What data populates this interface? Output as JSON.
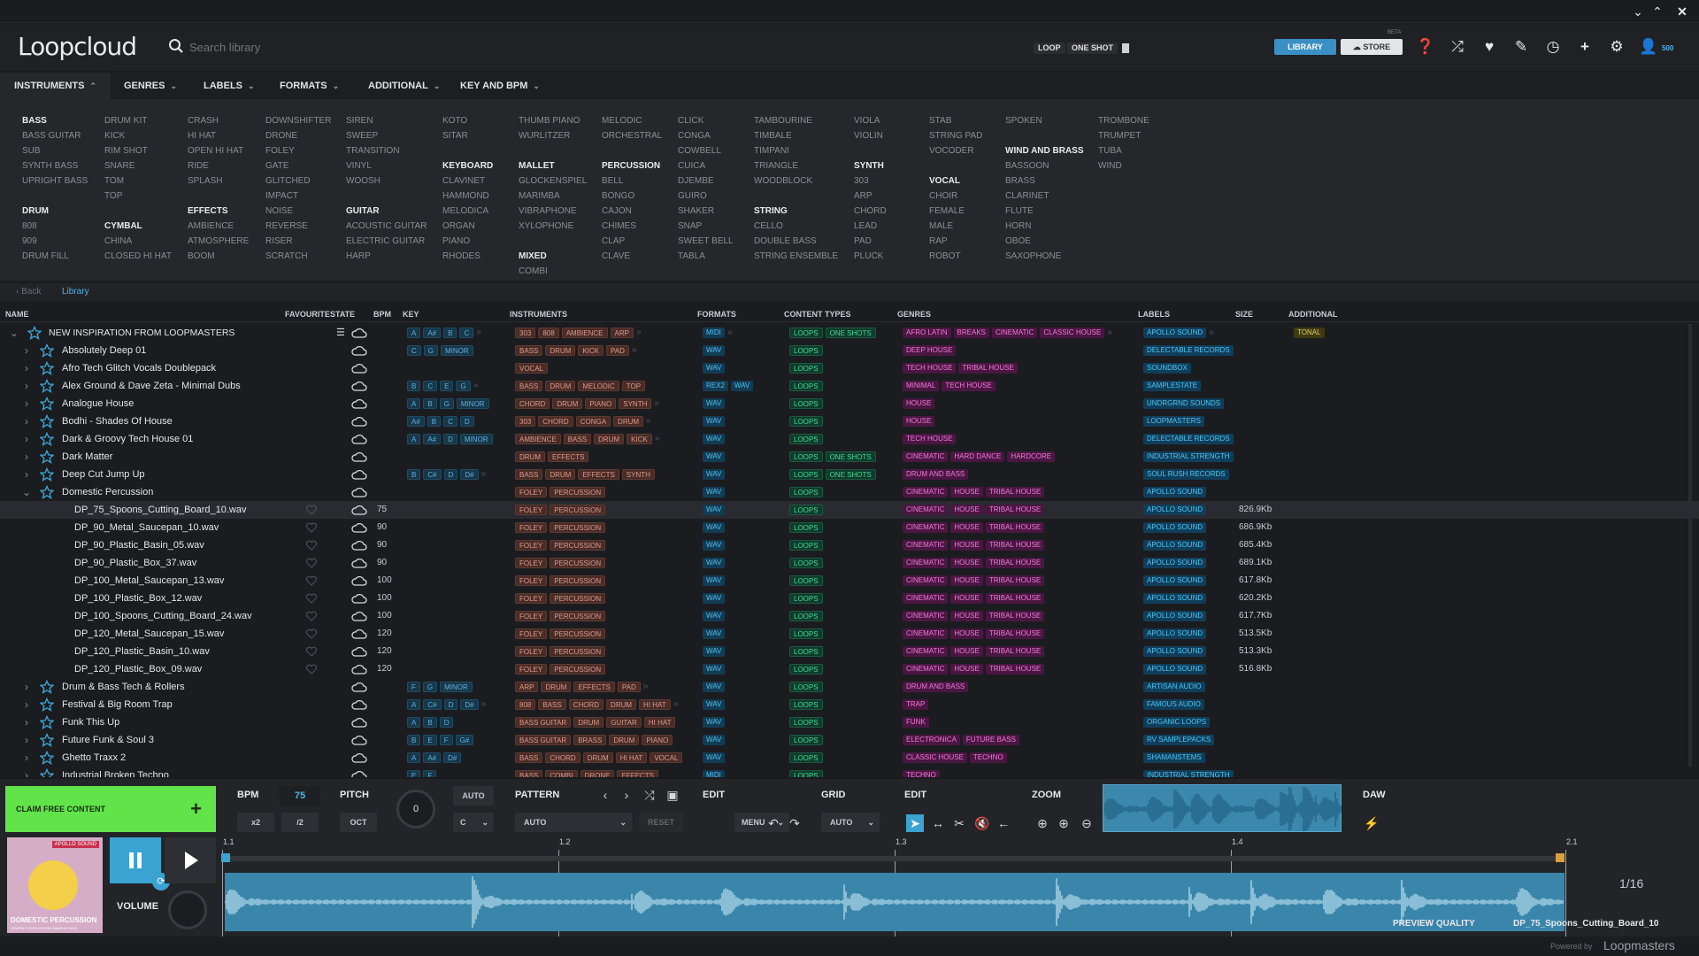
{
  "window": {
    "min": "⌄",
    "restore": "⌃",
    "close": "✕"
  },
  "app": {
    "logo": "Loopcloud"
  },
  "search": {
    "placeholder": "Search library",
    "value": ""
  },
  "toggles": {
    "loop": "LOOP",
    "one_shot": "ONE SHOT"
  },
  "header_buttons": {
    "library": "LIBRARY",
    "store": "STORE",
    "beta": "BETA",
    "points": "500"
  },
  "category_tabs": [
    {
      "label": "INSTRUMENTS",
      "chev": "⌃"
    },
    {
      "label": "GENRES",
      "chev": "⌄"
    },
    {
      "label": "LABELS",
      "chev": "⌄"
    },
    {
      "label": "FORMATS",
      "chev": "⌄"
    },
    {
      "label": "ADDITIONAL",
      "chev": "⌄"
    },
    {
      "label": "KEY AND BPM",
      "chev": "⌄"
    }
  ],
  "instrument_columns": [
    [
      {
        "t": "BASS",
        "h": true
      },
      {
        "t": "BASS GUITAR"
      },
      {
        "t": "SUB"
      },
      {
        "t": "SYNTH BASS"
      },
      {
        "t": "UPRIGHT BASS"
      },
      {
        "t": ""
      },
      {
        "t": "DRUM",
        "h": true
      },
      {
        "t": "808"
      },
      {
        "t": "909"
      },
      {
        "t": "DRUM FILL"
      }
    ],
    [
      {
        "t": "DRUM KIT"
      },
      {
        "t": "KICK"
      },
      {
        "t": "RIM SHOT"
      },
      {
        "t": "SNARE"
      },
      {
        "t": "TOM"
      },
      {
        "t": "TOP"
      },
      {
        "t": ""
      },
      {
        "t": "CYMBAL",
        "h": true
      },
      {
        "t": "CHINA"
      },
      {
        "t": "CLOSED HI HAT"
      }
    ],
    [
      {
        "t": "CRASH"
      },
      {
        "t": "HI HAT"
      },
      {
        "t": "OPEN HI HAT"
      },
      {
        "t": "RIDE"
      },
      {
        "t": "SPLASH"
      },
      {
        "t": ""
      },
      {
        "t": "EFFECTS",
        "h": true
      },
      {
        "t": "AMBIENCE"
      },
      {
        "t": "ATMOSPHERE"
      },
      {
        "t": "BOOM"
      }
    ],
    [
      {
        "t": "DOWNSHIFTER"
      },
      {
        "t": "DRONE"
      },
      {
        "t": "FOLEY"
      },
      {
        "t": "GATE"
      },
      {
        "t": "GLITCHED"
      },
      {
        "t": "IMPACT"
      },
      {
        "t": "NOISE"
      },
      {
        "t": "REVERSE"
      },
      {
        "t": "RISER"
      },
      {
        "t": "SCRATCH"
      }
    ],
    [
      {
        "t": "SIREN"
      },
      {
        "t": "SWEEP"
      },
      {
        "t": "TRANSITION"
      },
      {
        "t": "VINYL"
      },
      {
        "t": "WOOSH"
      },
      {
        "t": ""
      },
      {
        "t": "GUITAR",
        "h": true
      },
      {
        "t": "ACOUSTIC GUITAR"
      },
      {
        "t": "ELECTRIC GUITAR"
      },
      {
        "t": "HARP"
      }
    ],
    [
      {
        "t": "KOTO"
      },
      {
        "t": "SITAR"
      },
      {
        "t": ""
      },
      {
        "t": "KEYBOARD",
        "h": true
      },
      {
        "t": "CLAVINET"
      },
      {
        "t": "HAMMOND"
      },
      {
        "t": "MELODICA"
      },
      {
        "t": "ORGAN"
      },
      {
        "t": "PIANO"
      },
      {
        "t": "RHODES"
      }
    ],
    [
      {
        "t": "THUMB PIANO"
      },
      {
        "t": "WURLITZER"
      },
      {
        "t": ""
      },
      {
        "t": "MALLET",
        "h": true
      },
      {
        "t": "GLOCKENSPIEL"
      },
      {
        "t": "MARIMBA"
      },
      {
        "t": "VIBRAPHONE"
      },
      {
        "t": "XYLOPHONE"
      },
      {
        "t": ""
      },
      {
        "t": "MIXED",
        "h": true
      },
      {
        "t": "COMBI"
      }
    ],
    [
      {
        "t": "MELODIC"
      },
      {
        "t": "ORCHESTRAL"
      },
      {
        "t": ""
      },
      {
        "t": "PERCUSSION",
        "h": true
      },
      {
        "t": "BELL"
      },
      {
        "t": "BONGO"
      },
      {
        "t": "CAJON"
      },
      {
        "t": "CHIMES"
      },
      {
        "t": "CLAP"
      },
      {
        "t": "CLAVE"
      }
    ],
    [
      {
        "t": "CLICK"
      },
      {
        "t": "CONGA"
      },
      {
        "t": "COWBELL"
      },
      {
        "t": "CUICA"
      },
      {
        "t": "DJEMBE"
      },
      {
        "t": "GUIRO"
      },
      {
        "t": "SHAKER"
      },
      {
        "t": "SNAP"
      },
      {
        "t": "SWEET BELL"
      },
      {
        "t": "TABLA"
      }
    ],
    [
      {
        "t": "TAMBOURINE"
      },
      {
        "t": "TIMBALE"
      },
      {
        "t": "TIMPANI"
      },
      {
        "t": "TRIANGLE"
      },
      {
        "t": "WOODBLOCK"
      },
      {
        "t": ""
      },
      {
        "t": "STRING",
        "h": true
      },
      {
        "t": "CELLO"
      },
      {
        "t": "DOUBLE BASS"
      },
      {
        "t": "STRING ENSEMBLE"
      }
    ],
    [
      {
        "t": "VIOLA"
      },
      {
        "t": "VIOLIN"
      },
      {
        "t": ""
      },
      {
        "t": "SYNTH",
        "h": true
      },
      {
        "t": "303"
      },
      {
        "t": "ARP"
      },
      {
        "t": "CHORD"
      },
      {
        "t": "LEAD"
      },
      {
        "t": "PAD"
      },
      {
        "t": "PLUCK"
      }
    ],
    [
      {
        "t": "STAB"
      },
      {
        "t": "STRING PAD"
      },
      {
        "t": "VOCODER"
      },
      {
        "t": ""
      },
      {
        "t": "VOCAL",
        "h": true
      },
      {
        "t": "CHOIR"
      },
      {
        "t": "FEMALE"
      },
      {
        "t": "MALE"
      },
      {
        "t": "RAP"
      },
      {
        "t": "ROBOT"
      }
    ],
    [
      {
        "t": "SPOKEN"
      },
      {
        "t": ""
      },
      {
        "t": "WIND AND BRASS",
        "h": true
      },
      {
        "t": "BASSOON"
      },
      {
        "t": "BRASS"
      },
      {
        "t": "CLARINET"
      },
      {
        "t": "FLUTE"
      },
      {
        "t": "HORN"
      },
      {
        "t": "OBOE"
      },
      {
        "t": "SAXOPHONE"
      }
    ],
    [
      {
        "t": "TROMBONE"
      },
      {
        "t": "TRUMPET"
      },
      {
        "t": "TUBA"
      },
      {
        "t": "WIND"
      }
    ]
  ],
  "breadcrumb": {
    "back": "Back",
    "current": "Library"
  },
  "columns": {
    "name": "NAME",
    "favourite": "FAVOURITE",
    "state": "STATE",
    "bpm": "BPM",
    "key": "KEY",
    "instruments": "INSTRUMENTS",
    "formats": "FORMATS",
    "content_types": "CONTENT TYPES",
    "genres": "GENRES",
    "labels": "LABELS",
    "size": "SIZE",
    "additional": "ADDITIONAL"
  },
  "rows": [
    {
      "name": "NEW INSPIRATION FROM LOOPMASTERS",
      "level": 0,
      "exp": "open",
      "star": true,
      "stack": true,
      "bpm": "",
      "key": [
        "A",
        "A#",
        "B",
        "C"
      ],
      "km": true,
      "inst": [
        "303",
        "808",
        "AMBIENCE",
        "ARP"
      ],
      "im": true,
      "fmt": [
        "MIDI"
      ],
      "fm": true,
      "ct": [
        "LOOPS",
        "ONE SHOTS"
      ],
      "gen": [
        "AFRO LATIN",
        "BREAKS",
        "CINEMATIC",
        "CLASSIC HOUSE"
      ],
      "gm": true,
      "lab": [
        "APOLLO SOUND"
      ],
      "lm": true,
      "size": "",
      "add": [
        "TONAL"
      ]
    },
    {
      "name": "Absolutely Deep 01",
      "level": 1,
      "exp": "closed",
      "star": true,
      "bpm": "",
      "key": [
        "C",
        "G",
        "MINOR"
      ],
      "inst": [
        "BASS",
        "DRUM",
        "KICK",
        "PAD"
      ],
      "im": true,
      "fmt": [
        "WAV"
      ],
      "ct": [
        "LOOPS"
      ],
      "gen": [
        "DEEP HOUSE"
      ],
      "lab": [
        "DELECTABLE RECORDS"
      ],
      "size": ""
    },
    {
      "name": "Afro Tech Glitch Vocals Doublepack",
      "level": 1,
      "exp": "closed",
      "star": true,
      "bpm": "",
      "key": [],
      "inst": [
        "VOCAL"
      ],
      "fmt": [
        "WAV"
      ],
      "ct": [
        "LOOPS"
      ],
      "gen": [
        "TECH HOUSE",
        "TRIBAL HOUSE"
      ],
      "lab": [
        "SOUNDBOX"
      ],
      "size": ""
    },
    {
      "name": "Alex Ground & Dave Zeta - Minimal Dubs",
      "level": 1,
      "exp": "closed",
      "star": true,
      "bpm": "",
      "key": [
        "B",
        "C",
        "E",
        "G"
      ],
      "km": true,
      "inst": [
        "BASS",
        "DRUM",
        "MELODIC",
        "TOP"
      ],
      "fmt": [
        "REX2",
        "WAV"
      ],
      "ct": [
        "LOOPS"
      ],
      "gen": [
        "MINIMAL",
        "TECH HOUSE"
      ],
      "lab": [
        "SAMPLESTATE"
      ],
      "size": ""
    },
    {
      "name": "Analogue House",
      "level": 1,
      "exp": "closed",
      "star": true,
      "bpm": "",
      "key": [
        "A",
        "B",
        "G",
        "MINOR"
      ],
      "inst": [
        "CHORD",
        "DRUM",
        "PIANO",
        "SYNTH"
      ],
      "im": true,
      "fmt": [
        "WAV"
      ],
      "ct": [
        "LOOPS"
      ],
      "gen": [
        "HOUSE"
      ],
      "lab": [
        "UNDRGRND SOUNDS"
      ],
      "size": ""
    },
    {
      "name": "Bodhi - Shades Of House",
      "level": 1,
      "exp": "closed",
      "star": true,
      "bpm": "",
      "key": [
        "A#",
        "B",
        "C",
        "D"
      ],
      "inst": [
        "303",
        "CHORD",
        "CONGA",
        "DRUM"
      ],
      "im": true,
      "fmt": [
        "WAV"
      ],
      "ct": [
        "LOOPS"
      ],
      "gen": [
        "HOUSE"
      ],
      "lab": [
        "LOOPMASTERS"
      ],
      "size": ""
    },
    {
      "name": "Dark & Groovy Tech House 01",
      "level": 1,
      "exp": "closed",
      "star": true,
      "bpm": "",
      "key": [
        "A",
        "A#",
        "D",
        "MINOR"
      ],
      "inst": [
        "AMBIENCE",
        "BASS",
        "DRUM",
        "KICK"
      ],
      "im": true,
      "fmt": [
        "WAV"
      ],
      "ct": [
        "LOOPS"
      ],
      "gen": [
        "TECH HOUSE"
      ],
      "lab": [
        "DELECTABLE RECORDS"
      ],
      "size": ""
    },
    {
      "name": "Dark Matter",
      "level": 1,
      "exp": "closed",
      "star": true,
      "bpm": "",
      "key": [],
      "inst": [
        "DRUM",
        "EFFECTS"
      ],
      "fmt": [
        "WAV"
      ],
      "ct": [
        "LOOPS",
        "ONE SHOTS"
      ],
      "gen": [
        "CINEMATIC",
        "HARD DANCE",
        "HARDCORE"
      ],
      "lab": [
        "INDUSTRIAL STRENGTH"
      ],
      "size": ""
    },
    {
      "name": "Deep Cut Jump Up",
      "level": 1,
      "exp": "closed",
      "star": true,
      "bpm": "",
      "key": [
        "B",
        "C#",
        "D",
        "D#"
      ],
      "km": true,
      "inst": [
        "BASS",
        "DRUM",
        "EFFECTS",
        "SYNTH"
      ],
      "fmt": [
        "WAV"
      ],
      "ct": [
        "LOOPS",
        "ONE SHOTS"
      ],
      "gen": [
        "DRUM AND BASS"
      ],
      "lab": [
        "SOUL RUSH RECORDS"
      ],
      "size": ""
    },
    {
      "name": "Domestic Percussion",
      "level": 1,
      "exp": "open",
      "star": true,
      "bpm": "",
      "key": [],
      "inst": [
        "FOLEY",
        "PERCUSSION"
      ],
      "fmt": [
        "WAV"
      ],
      "ct": [
        "LOOPS"
      ],
      "gen": [
        "CINEMATIC",
        "HOUSE",
        "TRIBAL HOUSE"
      ],
      "lab": [
        "APOLLO SOUND"
      ],
      "size": ""
    },
    {
      "name": "DP_75_Spoons_Cutting_Board_10.wav",
      "level": 2,
      "sel": true,
      "bpm": "75",
      "key": [],
      "inst": [
        "FOLEY",
        "PERCUSSION"
      ],
      "fmt": [
        "WAV"
      ],
      "ct": [
        "LOOPS"
      ],
      "gen": [
        "CINEMATIC",
        "HOUSE",
        "TRIBAL HOUSE"
      ],
      "lab": [
        "APOLLO SOUND"
      ],
      "size": "826.9Kb"
    },
    {
      "name": "DP_90_Metal_Saucepan_10.wav",
      "level": 2,
      "bpm": "90",
      "key": [],
      "inst": [
        "FOLEY",
        "PERCUSSION"
      ],
      "fmt": [
        "WAV"
      ],
      "ct": [
        "LOOPS"
      ],
      "gen": [
        "CINEMATIC",
        "HOUSE",
        "TRIBAL HOUSE"
      ],
      "lab": [
        "APOLLO SOUND"
      ],
      "size": "686.9Kb"
    },
    {
      "name": "DP_90_Plastic_Basin_05.wav",
      "level": 2,
      "bpm": "90",
      "key": [],
      "inst": [
        "FOLEY",
        "PERCUSSION"
      ],
      "fmt": [
        "WAV"
      ],
      "ct": [
        "LOOPS"
      ],
      "gen": [
        "CINEMATIC",
        "HOUSE",
        "TRIBAL HOUSE"
      ],
      "lab": [
        "APOLLO SOUND"
      ],
      "size": "685.4Kb"
    },
    {
      "name": "DP_90_Plastic_Box_37.wav",
      "level": 2,
      "bpm": "90",
      "key": [],
      "inst": [
        "FOLEY",
        "PERCUSSION"
      ],
      "fmt": [
        "WAV"
      ],
      "ct": [
        "LOOPS"
      ],
      "gen": [
        "CINEMATIC",
        "HOUSE",
        "TRIBAL HOUSE"
      ],
      "lab": [
        "APOLLO SOUND"
      ],
      "size": "689.1Kb"
    },
    {
      "name": "DP_100_Metal_Saucepan_13.wav",
      "level": 2,
      "bpm": "100",
      "key": [],
      "inst": [
        "FOLEY",
        "PERCUSSION"
      ],
      "fmt": [
        "WAV"
      ],
      "ct": [
        "LOOPS"
      ],
      "gen": [
        "CINEMATIC",
        "HOUSE",
        "TRIBAL HOUSE"
      ],
      "lab": [
        "APOLLO SOUND"
      ],
      "size": "617.8Kb"
    },
    {
      "name": "DP_100_Plastic_Box_12.wav",
      "level": 2,
      "bpm": "100",
      "key": [],
      "inst": [
        "FOLEY",
        "PERCUSSION"
      ],
      "fmt": [
        "WAV"
      ],
      "ct": [
        "LOOPS"
      ],
      "gen": [
        "CINEMATIC",
        "HOUSE",
        "TRIBAL HOUSE"
      ],
      "lab": [
        "APOLLO SOUND"
      ],
      "size": "620.2Kb"
    },
    {
      "name": "DP_100_Spoons_Cutting_Board_24.wav",
      "level": 2,
      "bpm": "100",
      "key": [],
      "inst": [
        "FOLEY",
        "PERCUSSION"
      ],
      "fmt": [
        "WAV"
      ],
      "ct": [
        "LOOPS"
      ],
      "gen": [
        "CINEMATIC",
        "HOUSE",
        "TRIBAL HOUSE"
      ],
      "lab": [
        "APOLLO SOUND"
      ],
      "size": "617.7Kb"
    },
    {
      "name": "DP_120_Metal_Saucepan_15.wav",
      "level": 2,
      "bpm": "120",
      "key": [],
      "inst": [
        "FOLEY",
        "PERCUSSION"
      ],
      "fmt": [
        "WAV"
      ],
      "ct": [
        "LOOPS"
      ],
      "gen": [
        "CINEMATIC",
        "HOUSE",
        "TRIBAL HOUSE"
      ],
      "lab": [
        "APOLLO SOUND"
      ],
      "size": "513.5Kb"
    },
    {
      "name": "DP_120_Plastic_Basin_10.wav",
      "level": 2,
      "bpm": "120",
      "key": [],
      "inst": [
        "FOLEY",
        "PERCUSSION"
      ],
      "fmt": [
        "WAV"
      ],
      "ct": [
        "LOOPS"
      ],
      "gen": [
        "CINEMATIC",
        "HOUSE",
        "TRIBAL HOUSE"
      ],
      "lab": [
        "APOLLO SOUND"
      ],
      "size": "513.3Kb"
    },
    {
      "name": "DP_120_Plastic_Box_09.wav",
      "level": 2,
      "bpm": "120",
      "key": [],
      "inst": [
        "FOLEY",
        "PERCUSSION"
      ],
      "fmt": [
        "WAV"
      ],
      "ct": [
        "LOOPS"
      ],
      "gen": [
        "CINEMATIC",
        "HOUSE",
        "TRIBAL HOUSE"
      ],
      "lab": [
        "APOLLO SOUND"
      ],
      "size": "516.8Kb"
    },
    {
      "name": "Drum & Bass Tech & Rollers",
      "level": 1,
      "exp": "closed",
      "star": true,
      "bpm": "",
      "key": [
        "F",
        "G",
        "MINOR"
      ],
      "inst": [
        "ARP",
        "DRUM",
        "EFFECTS",
        "PAD"
      ],
      "im": true,
      "fmt": [
        "WAV"
      ],
      "ct": [
        "LOOPS"
      ],
      "gen": [
        "DRUM AND BASS"
      ],
      "lab": [
        "ARTISAN AUDIO"
      ],
      "size": ""
    },
    {
      "name": "Festival & Big Room Trap",
      "level": 1,
      "exp": "closed",
      "star": true,
      "bpm": "",
      "key": [
        "A",
        "C#",
        "D",
        "D#"
      ],
      "km": true,
      "inst": [
        "808",
        "BASS",
        "CHORD",
        "DRUM",
        "HI HAT"
      ],
      "im": true,
      "fmt": [
        "WAV"
      ],
      "ct": [
        "LOOPS"
      ],
      "gen": [
        "TRAP"
      ],
      "lab": [
        "FAMOUS AUDIO"
      ],
      "size": ""
    },
    {
      "name": "Funk This Up",
      "level": 1,
      "exp": "closed",
      "star": true,
      "bpm": "",
      "key": [
        "A",
        "B",
        "D"
      ],
      "inst": [
        "BASS GUITAR",
        "DRUM",
        "GUITAR",
        "HI HAT"
      ],
      "fmt": [
        "WAV"
      ],
      "ct": [
        "LOOPS"
      ],
      "gen": [
        "FUNK"
      ],
      "lab": [
        "ORGANIC LOOPS"
      ],
      "size": ""
    },
    {
      "name": "Future Funk & Soul 3",
      "level": 1,
      "exp": "closed",
      "star": true,
      "bpm": "",
      "key": [
        "B",
        "E",
        "F",
        "G#"
      ],
      "inst": [
        "BASS GUITAR",
        "BRASS",
        "DRUM",
        "PIANO"
      ],
      "fmt": [
        "WAV"
      ],
      "ct": [
        "LOOPS"
      ],
      "gen": [
        "ELECTRONICA",
        "FUTURE BASS"
      ],
      "lab": [
        "RV SAMPLEPACKS"
      ],
      "size": ""
    },
    {
      "name": "Ghetto Traxx 2",
      "level": 1,
      "exp": "closed",
      "star": true,
      "bpm": "",
      "key": [
        "A",
        "A#",
        "D#"
      ],
      "inst": [
        "BASS",
        "CHORD",
        "DRUM",
        "HI HAT",
        "VOCAL"
      ],
      "fmt": [
        "WAV"
      ],
      "ct": [
        "LOOPS"
      ],
      "gen": [
        "CLASSIC HOUSE",
        "TECHNO"
      ],
      "lab": [
        "SHAMANSTEMS"
      ],
      "size": ""
    },
    {
      "name": "Industrial Broken Techno",
      "level": 1,
      "exp": "closed",
      "star": true,
      "bpm": "",
      "key": [
        "E",
        "F"
      ],
      "inst": [
        "BASS",
        "COMBI",
        "DRONE",
        "EFFECTS"
      ],
      "fmt": [
        "MIDI"
      ],
      "ct": [
        "LOOPS"
      ],
      "gen": [
        "TECHNO"
      ],
      "lab": [
        "INDUSTRIAL STRENGTH"
      ],
      "size": ""
    }
  ],
  "player": {
    "claim": "CLAIM FREE CONTENT",
    "bpm_label": "BPM",
    "bpm_value": "75",
    "x2": "x2",
    "half": "/2",
    "pitch_label": "PITCH",
    "oct": "OCT",
    "pitch_value": "0",
    "auto": "AUTO",
    "key_value": "C",
    "pattern_label": "PATTERN",
    "pattern_value": "AUTO",
    "reset": "RESET",
    "edit_label": "EDIT",
    "menu": "MENU",
    "grid_label": "GRID",
    "grid_value": "AUTO",
    "edit2_label": "EDIT",
    "zoom_label": "ZOOM",
    "daw_label": "DAW",
    "volume_label": "VOLUME",
    "markers": [
      "1.1",
      "1.2",
      "1.3",
      "1.4",
      "2.1"
    ],
    "grid_fraction": "1/16",
    "preview_quality": "PREVIEW QUALITY",
    "current_file": "DP_75_Spoons_Cutting_Board_10",
    "cover_brand": "APOLLO SOUND",
    "cover_title": "DOMESTIC PERCUSSION",
    "cover_sub": "GRAPHIC PERCUSSION SAMPLE PACK",
    "powered_by": "Powered by",
    "powered_brand": "Loopmasters"
  }
}
